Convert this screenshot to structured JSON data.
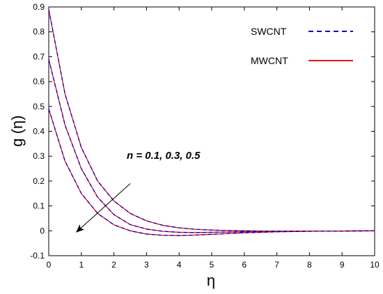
{
  "chart_data": {
    "type": "line",
    "title": "",
    "xlabel": "η",
    "ylabel": "g (η)",
    "xlim": [
      0,
      10
    ],
    "ylim": [
      -0.1,
      0.9
    ],
    "xticks": [
      "0",
      "1",
      "2",
      "3",
      "4",
      "5",
      "6",
      "7",
      "8",
      "9",
      "10"
    ],
    "yticks": [
      "-0.1",
      "0",
      "0.1",
      "0.2",
      "0.3",
      "0.4",
      "0.5",
      "0.6",
      "0.7",
      "0.8",
      "0.9"
    ],
    "grid": false,
    "legend_position": "top-right",
    "legend": [
      {
        "label": "SWCNT",
        "color": "#0000cc",
        "style": "dashed"
      },
      {
        "label": "MWCNT",
        "color": "#ee1111",
        "style": "solid"
      }
    ],
    "annotation": {
      "text": "n = 0.1, 0.3, 0.5",
      "arrow_from": [
        2.5,
        0.19
      ],
      "arrow_to": [
        0.85,
        -0.005
      ]
    },
    "curves": [
      {
        "n": "0.1",
        "x": [
          0,
          0.5,
          1,
          1.5,
          2,
          2.5,
          3,
          3.5,
          4,
          4.5,
          5,
          5.5,
          6,
          6.5,
          7,
          7.5,
          8,
          8.5,
          9,
          9.5,
          10
        ],
        "y": [
          0.89,
          0.55,
          0.335,
          0.2,
          0.12,
          0.07,
          0.04,
          0.022,
          0.012,
          0.006,
          0.003,
          0.001,
          0.0,
          -0.001,
          -0.001,
          -0.001,
          -0.001,
          -0.001,
          -0.001,
          -0.001,
          0.0
        ]
      },
      {
        "n": "0.3",
        "x": [
          0,
          0.5,
          1,
          1.5,
          2,
          2.5,
          3,
          3.5,
          4,
          4.5,
          5,
          5.5,
          6,
          6.5,
          7,
          7.5,
          8,
          8.5,
          9,
          9.5,
          10
        ],
        "y": [
          0.69,
          0.425,
          0.25,
          0.135,
          0.065,
          0.025,
          0.007,
          -0.002,
          -0.006,
          -0.007,
          -0.006,
          -0.005,
          -0.004,
          -0.003,
          -0.002,
          -0.002,
          -0.001,
          -0.001,
          -0.001,
          0.0,
          0.0
        ]
      },
      {
        "n": "0.5",
        "x": [
          0,
          0.5,
          1,
          1.5,
          2,
          2.5,
          3,
          3.5,
          4,
          4.5,
          5,
          5.5,
          6,
          6.5,
          7,
          7.5,
          8,
          8.5,
          9,
          9.5,
          10
        ],
        "y": [
          0.49,
          0.28,
          0.15,
          0.07,
          0.024,
          0.0,
          -0.013,
          -0.018,
          -0.019,
          -0.017,
          -0.014,
          -0.011,
          -0.008,
          -0.006,
          -0.004,
          -0.003,
          -0.002,
          -0.001,
          -0.001,
          0.0,
          0.0
        ]
      }
    ]
  }
}
